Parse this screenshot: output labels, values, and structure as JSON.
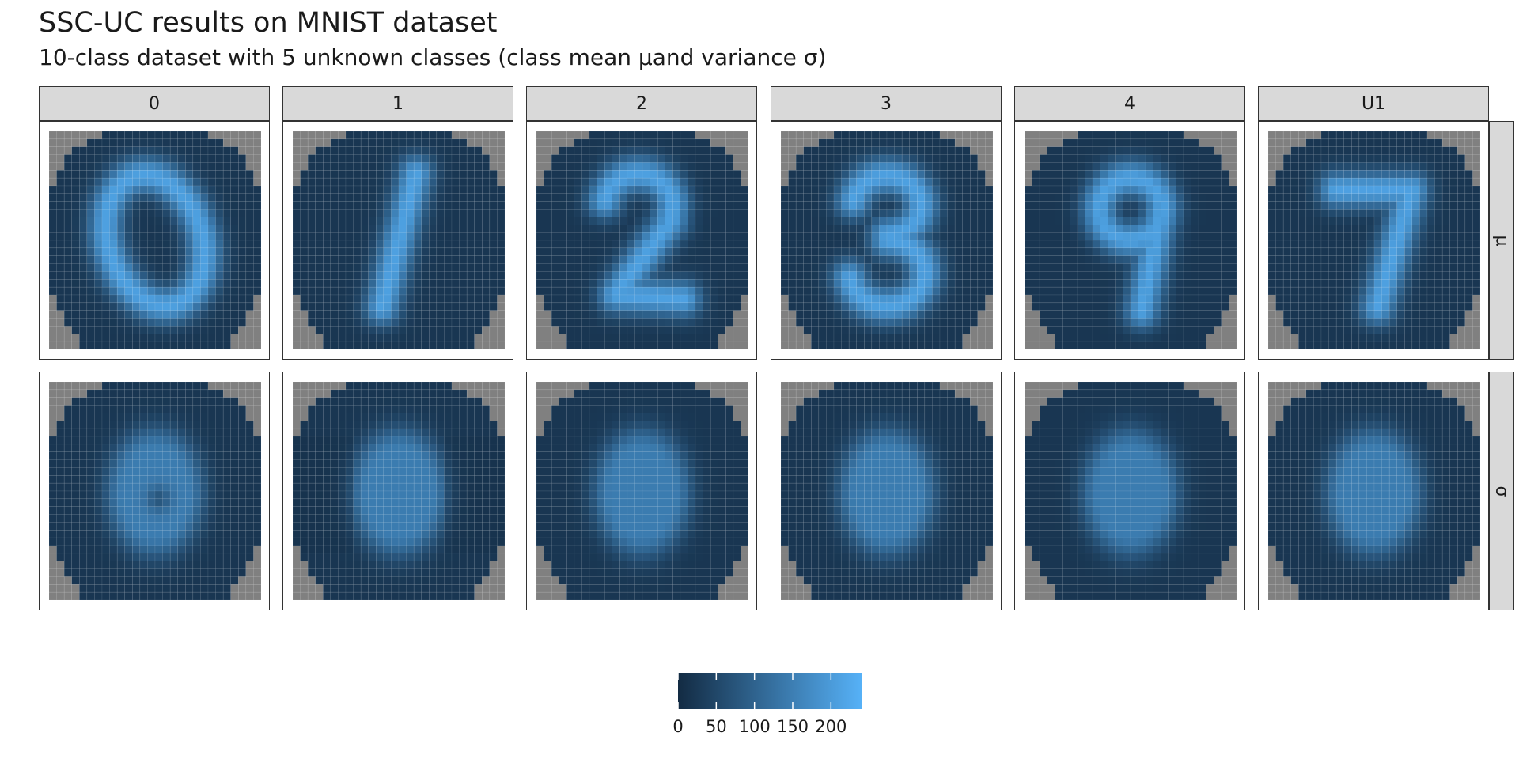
{
  "title": "SSC-UC results on MNIST dataset",
  "subtitle": "10-class dataset with 5 unknown classes (class mean µand variance σ)",
  "chart_data": {
    "type": "heatmap",
    "title": "SSC-UC results on MNIST dataset",
    "subtitle": "10-class dataset with 5 unknown classes (class mean µand variance σ)",
    "columns": [
      "0",
      "1",
      "2",
      "3",
      "4",
      "U1"
    ],
    "rows": [
      "µ",
      "σ"
    ],
    "grid": {
      "width": 28,
      "height": 28
    },
    "depicted_digits": [
      "0",
      "1",
      "2",
      "3",
      "9",
      "7"
    ],
    "legend": {
      "ticks": [
        "0",
        "50",
        "100",
        "150",
        "200"
      ],
      "range": [
        0,
        240
      ],
      "placement": "bottom"
    },
    "colors": {
      "na": "#808080",
      "low": "#132b43",
      "high": "#56b1f7"
    }
  }
}
